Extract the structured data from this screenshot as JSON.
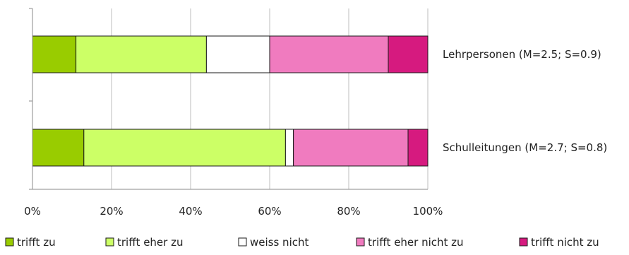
{
  "chart_data": {
    "type": "bar",
    "orientation": "horizontal",
    "stacked": true,
    "percent": true,
    "categories": [
      "Lehrpersonen (M=2.5; S=0.9)",
      "Schulleitungen (M=2.7; S=0.8)"
    ],
    "series": [
      {
        "name": "trifft zu",
        "color": "#99cc00",
        "values": [
          11,
          13
        ]
      },
      {
        "name": "trifft eher zu",
        "color": "#ccff66",
        "values": [
          33,
          51
        ]
      },
      {
        "name": "weiss nicht",
        "color": "#ffffff",
        "values": [
          16,
          2
        ]
      },
      {
        "name": "trifft eher nicht zu",
        "color": "#f07bbf",
        "values": [
          30,
          29
        ]
      },
      {
        "name": "trifft nicht zu",
        "color": "#d61a7f",
        "values": [
          10,
          5
        ]
      }
    ],
    "xlim": [
      0,
      100
    ],
    "xticks": [
      "0%",
      "20%",
      "40%",
      "60%",
      "80%",
      "100%"
    ],
    "grid": true,
    "legend_position": "bottom"
  }
}
